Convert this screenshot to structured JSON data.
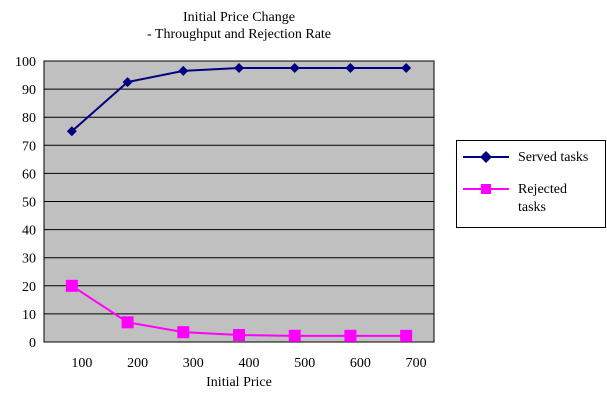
{
  "chart_data": {
    "type": "line",
    "title": "Initial Price Change",
    "subtitle": "- Throughput and Rejection Rate",
    "xlabel": "Initial Price",
    "ylabel": "",
    "categories": [
      "100",
      "200",
      "300",
      "400",
      "500",
      "600",
      "700"
    ],
    "ylim": [
      0,
      100
    ],
    "yticks": [
      "0",
      "10",
      "20",
      "30",
      "40",
      "50",
      "60",
      "70",
      "80",
      "90",
      "100"
    ],
    "grid": true,
    "legend_position": "right",
    "plot_background": "#c0c0c0",
    "series": [
      {
        "name": "Served tasks",
        "color": "#000080",
        "marker": "diamond",
        "values": [
          75,
          92.5,
          96.5,
          97.5,
          97.5,
          97.5,
          97.5
        ]
      },
      {
        "name": "Rejected tasks",
        "color": "#ff00ff",
        "marker": "square",
        "values": [
          20,
          7,
          3.5,
          2.5,
          2.2,
          2.2,
          2.2
        ]
      }
    ]
  },
  "legend": {
    "served_label": "Served tasks",
    "rejected_label_line1": "Rejected",
    "rejected_label_line2": "tasks"
  }
}
